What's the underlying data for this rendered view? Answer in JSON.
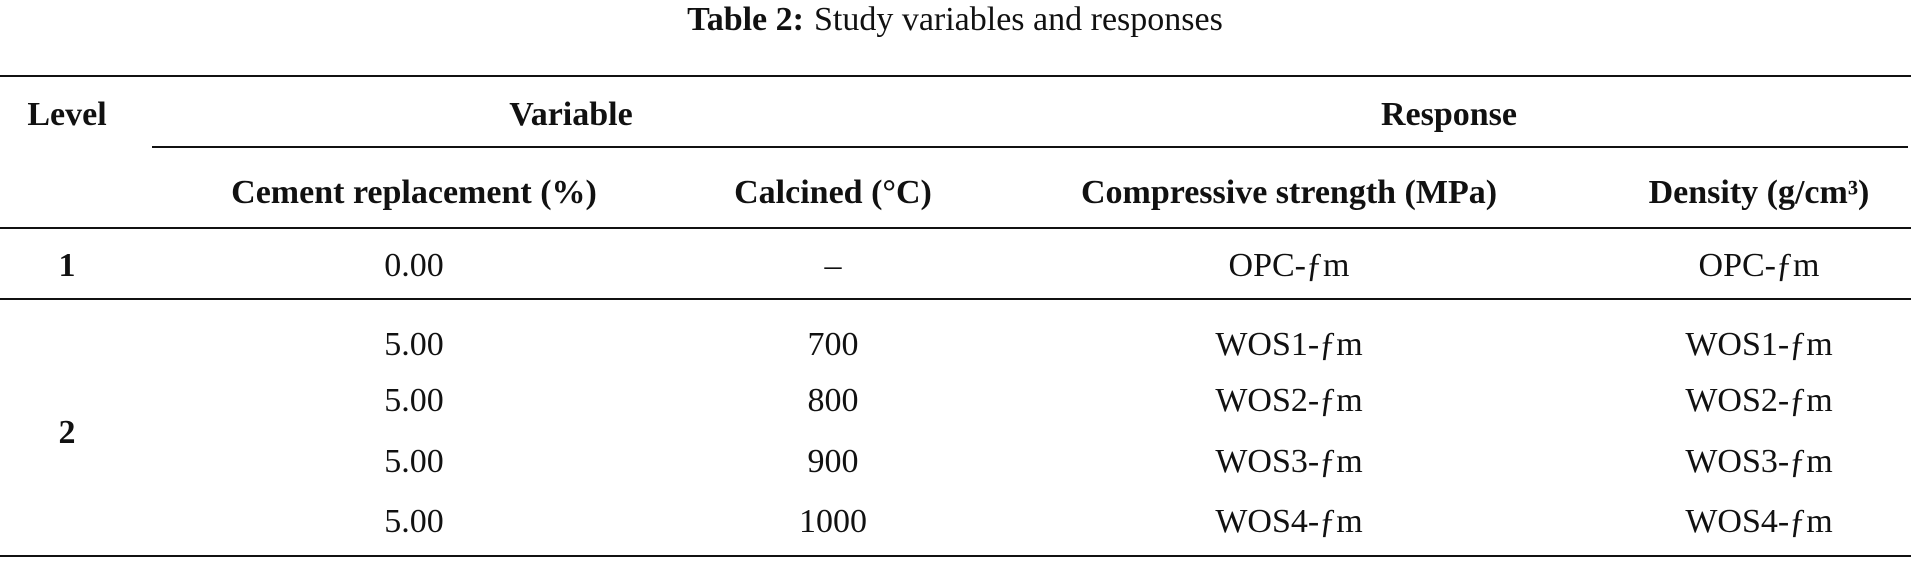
{
  "caption": {
    "label": "Table 2:",
    "text": "Study variables and responses"
  },
  "header": {
    "level": "Level",
    "variable": "Variable",
    "response": "Response",
    "columns": [
      "Cement replacement (%)",
      "Calcined (°C)",
      "Compressive strength (MPa)",
      "Density (g/cm³)"
    ]
  },
  "groups": [
    {
      "level": "1",
      "rows": [
        [
          "0.00",
          "–",
          "OPC-ƒm",
          "OPC-ƒm"
        ]
      ]
    },
    {
      "level": "2",
      "rows": [
        [
          "5.00",
          "700",
          "WOS1-ƒm",
          "WOS1-ƒm"
        ],
        [
          "5.00",
          "800",
          "WOS2-ƒm",
          "WOS2-ƒm"
        ],
        [
          "5.00",
          "900",
          "WOS3-ƒm",
          "WOS3-ƒm"
        ],
        [
          "5.00",
          "1000",
          "WOS4-ƒm",
          "WOS4-ƒm"
        ]
      ]
    }
  ]
}
